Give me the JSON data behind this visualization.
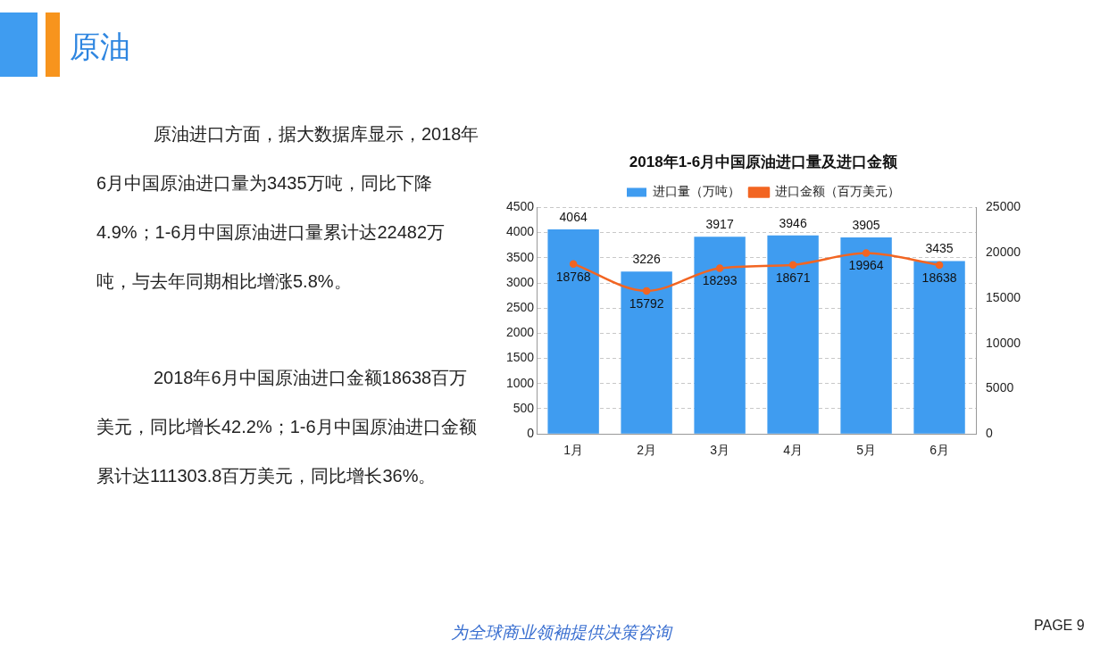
{
  "chart_data": {
    "type": "bar",
    "title": "2018年1-6月中国原油进口量及进口金额",
    "categories": [
      "1月",
      "2月",
      "3月",
      "4月",
      "5月",
      "6月"
    ],
    "series": [
      {
        "name": "进口量（万吨）",
        "color": "#3f9cf0",
        "values": [
          4064,
          3226,
          3917,
          3946,
          3905,
          3435
        ]
      },
      {
        "name": "进口金额（百万美元）",
        "type": "line",
        "axis": "y2",
        "color": "#f26522",
        "values": [
          18768,
          15792,
          18293,
          18671,
          19964,
          18638
        ]
      }
    ],
    "ylim": [
      0,
      4500
    ],
    "yticks": [
      0,
      500,
      1000,
      1500,
      2000,
      2500,
      3000,
      3500,
      4000,
      4500
    ],
    "y2lim": [
      0,
      25000
    ],
    "y2ticks": [
      0,
      5000,
      10000,
      15000,
      20000,
      25000
    ],
    "grid": "y",
    "legend": "top",
    "marker": "circle",
    "data_labels": true,
    "annotations": [
      "原油",
      "原油进口方面，据大数据库显示，2018年6月中国原油进口量为3435万吨，同比下降4.9%；1-6月中国原油进口量累计达22482万吨，与去年同期相比增涨5.8%。",
      "2018年6月中国原油进口金额18638百万美元，同比增长42.2%；1-6月中国原油进口金额累计达111303.8百万美元，同比增长36%。",
      "为全球商业领袖提供决策咨询",
      "PAGE 9"
    ]
  }
}
